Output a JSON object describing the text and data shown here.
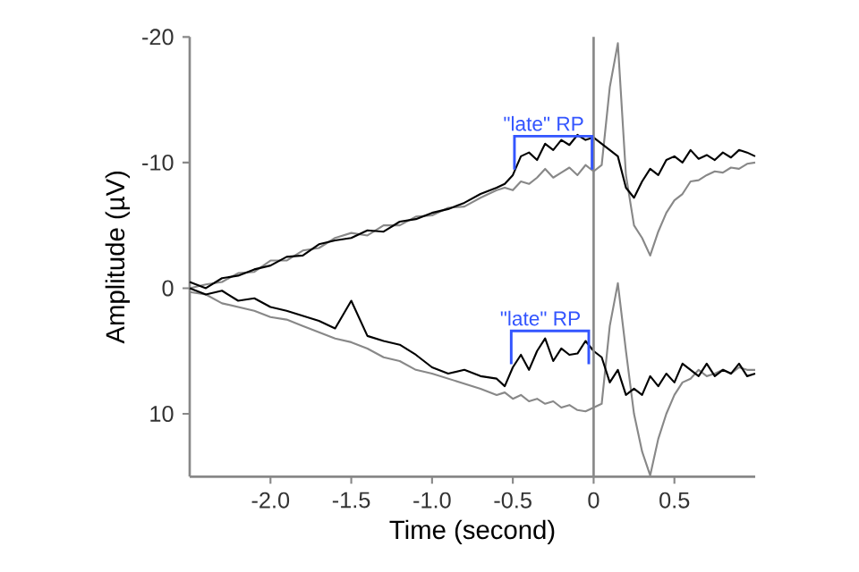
{
  "chart_data": {
    "type": "line",
    "xlabel": "Time (second)",
    "ylabel": "Amplitude (µV)",
    "xlim": [
      -2.5,
      1.0
    ],
    "ylim": [
      15,
      -20
    ],
    "xticks": [
      {
        "value": -2.0,
        "label": "-2.0"
      },
      -1.5,
      {
        "value": -1.0,
        "label": "-1.0"
      },
      -0.5,
      0,
      0.5
    ],
    "yticks": [
      -20,
      -10,
      0,
      10
    ],
    "line_style": "solid",
    "x": [
      -2.5,
      -2.4,
      -2.3,
      -2.2,
      -2.1,
      -2.0,
      -1.9,
      -1.8,
      -1.7,
      -1.6,
      -1.5,
      -1.4,
      -1.3,
      -1.2,
      -1.1,
      -1.0,
      -0.9,
      -0.8,
      -0.7,
      -0.6,
      -0.55,
      -0.5,
      -0.45,
      -0.4,
      -0.35,
      -0.3,
      -0.25,
      -0.2,
      -0.15,
      -0.1,
      -0.05,
      0,
      0.05,
      0.1,
      0.15,
      0.2,
      0.25,
      0.3,
      0.35,
      0.4,
      0.45,
      0.5,
      0.55,
      0.6,
      0.65,
      0.7,
      0.75,
      0.8,
      0.85,
      0.9,
      0.95,
      1.0
    ],
    "series": [
      {
        "color": "#888888",
        "values": [
          0,
          -0.3,
          -0.5,
          -1.2,
          -1.3,
          -2.2,
          -2.2,
          -3,
          -3.2,
          -4,
          -4.4,
          -4.2,
          -5,
          -5,
          -5.7,
          -5.8,
          -6.4,
          -6.5,
          -7.2,
          -7.8,
          -8,
          -7.8,
          -8.5,
          -8.3,
          -8.8,
          -9.5,
          -8.8,
          -9.2,
          -9.6,
          -9,
          -9.8,
          -9.3,
          -9.8,
          -16,
          -19.5,
          -9,
          -5,
          -4,
          -2.6,
          -4.5,
          -6,
          -7,
          -7.5,
          -8.5,
          -8.6,
          -9,
          -9.3,
          -9.2,
          -9.6,
          -9.5,
          -9.9,
          -10
        ]
      },
      {
        "color": "#000000",
        "values": [
          -0.5,
          0,
          -0.8,
          -1,
          -1.5,
          -1.8,
          -2.5,
          -2.6,
          -3.5,
          -3.8,
          -4,
          -4.6,
          -4.5,
          -5.3,
          -5.5,
          -6,
          -6.3,
          -6.8,
          -7.5,
          -8,
          -8.3,
          -9,
          -10.5,
          -10.8,
          -10.2,
          -11.5,
          -11,
          -11.8,
          -11.4,
          -12.2,
          -11.8,
          -12,
          -11.5,
          -11,
          -10.5,
          -8,
          -7.2,
          -8.5,
          -9.5,
          -9,
          -10.2,
          -10.5,
          -10,
          -11,
          -10.3,
          -10.6,
          -10.2,
          -10.8,
          -10.4,
          -11,
          -10.8,
          -10.5
        ]
      },
      {
        "color": "#888888",
        "values": [
          0.3,
          0.5,
          1.2,
          1.5,
          1.8,
          2.3,
          2.5,
          3,
          3.5,
          4,
          4.3,
          4.8,
          5.5,
          5.8,
          6.5,
          6.8,
          7.2,
          7.6,
          8,
          8.5,
          8.3,
          8.8,
          8.5,
          9,
          8.8,
          9.2,
          9,
          9.5,
          9.3,
          9.7,
          9.8,
          9.5,
          9.2,
          3,
          -0.4,
          5,
          10,
          13,
          14.9,
          12,
          10,
          8.5,
          7.5,
          7.2,
          6.5,
          7,
          6.8,
          6.5,
          6.8,
          6.3,
          6.5,
          6.5
        ]
      },
      {
        "color": "#000000",
        "values": [
          0,
          0.5,
          0.2,
          1,
          0.8,
          1.5,
          1.8,
          2.2,
          2.6,
          3.2,
          1,
          3.8,
          4.2,
          4.5,
          5.3,
          6.3,
          6.8,
          6.5,
          7,
          7.2,
          7.8,
          6.3,
          5.3,
          6.5,
          5,
          4,
          5.8,
          4.8,
          5.3,
          5.2,
          4.2,
          5,
          5.5,
          7.5,
          6.5,
          8.5,
          8,
          8.5,
          7,
          7.8,
          6.8,
          7.5,
          6,
          6.5,
          7,
          6,
          7,
          6.5,
          6.8,
          6,
          7,
          6.8
        ]
      }
    ],
    "ref_lines": [
      {
        "axis": "x",
        "value": 0,
        "color": "#888888"
      }
    ],
    "annotations": [
      {
        "text": "\"late\" RP",
        "x": -0.25,
        "y": -12.1
      },
      {
        "text": "\"late\" RP",
        "x": -0.27,
        "y": 3.4
      }
    ]
  }
}
